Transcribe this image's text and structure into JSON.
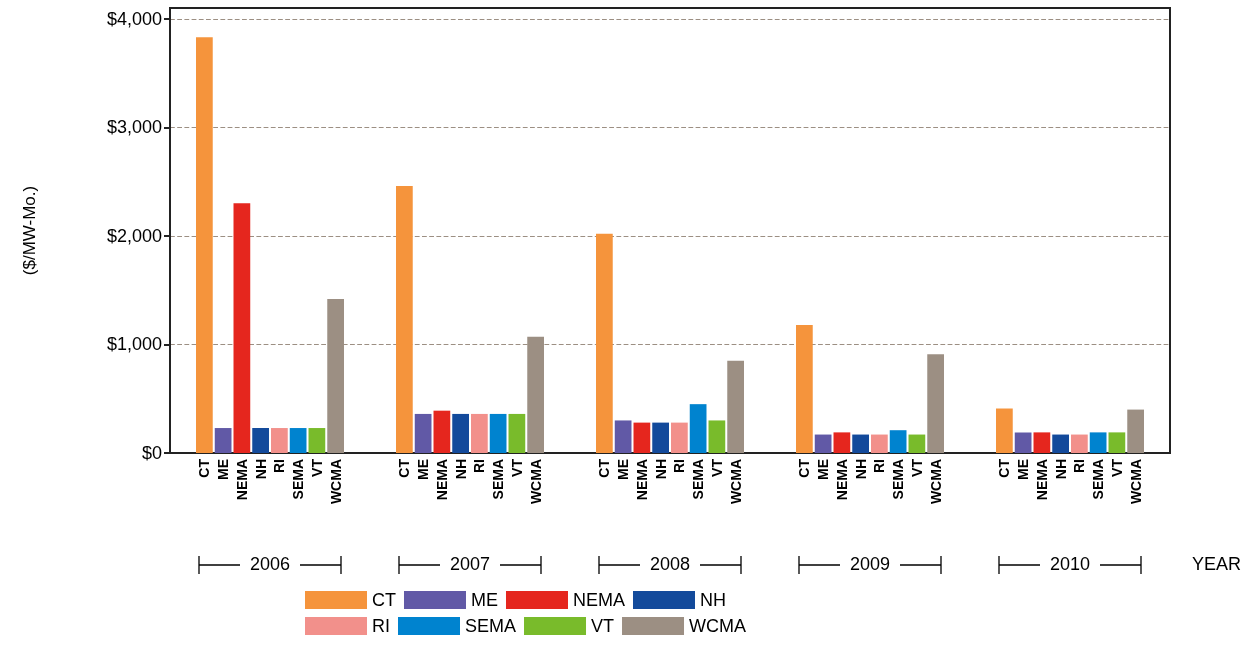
{
  "chart_data": {
    "type": "bar",
    "ylabel": "($/MW-Mo.)",
    "xlabel": "YEAR",
    "categories": [
      "2006",
      "2007",
      "2008",
      "2009",
      "2010"
    ],
    "series": [
      {
        "name": "CT",
        "color": "#f5943c",
        "values": [
          3830,
          2460,
          2020,
          1180,
          410
        ]
      },
      {
        "name": "ME",
        "color": "#6159a6",
        "values": [
          230,
          360,
          300,
          170,
          190
        ]
      },
      {
        "name": "NEMA",
        "color": "#e5261e",
        "values": [
          2300,
          390,
          280,
          190,
          190
        ]
      },
      {
        "name": "NH",
        "color": "#134a9b",
        "values": [
          230,
          360,
          280,
          170,
          170
        ]
      },
      {
        "name": "RI",
        "color": "#f2908b",
        "values": [
          230,
          360,
          280,
          170,
          170
        ]
      },
      {
        "name": "SEMA",
        "color": "#0083cf",
        "values": [
          230,
          360,
          450,
          210,
          190
        ]
      },
      {
        "name": "VT",
        "color": "#79bb2b",
        "values": [
          230,
          360,
          300,
          170,
          190
        ]
      },
      {
        "name": "WCMA",
        "color": "#9c8f83",
        "values": [
          1420,
          1070,
          850,
          910,
          400
        ]
      }
    ],
    "ylim": [
      0,
      4100
    ],
    "yticks": [
      {
        "value": 0,
        "label": "$0"
      },
      {
        "value": 1000,
        "label": "$1,000"
      },
      {
        "value": 2000,
        "label": "$2,000"
      },
      {
        "value": 3000,
        "label": "$3,000"
      },
      {
        "value": 4000,
        "label": "$4,000"
      }
    ],
    "grid": "y",
    "legend": "bottom"
  }
}
